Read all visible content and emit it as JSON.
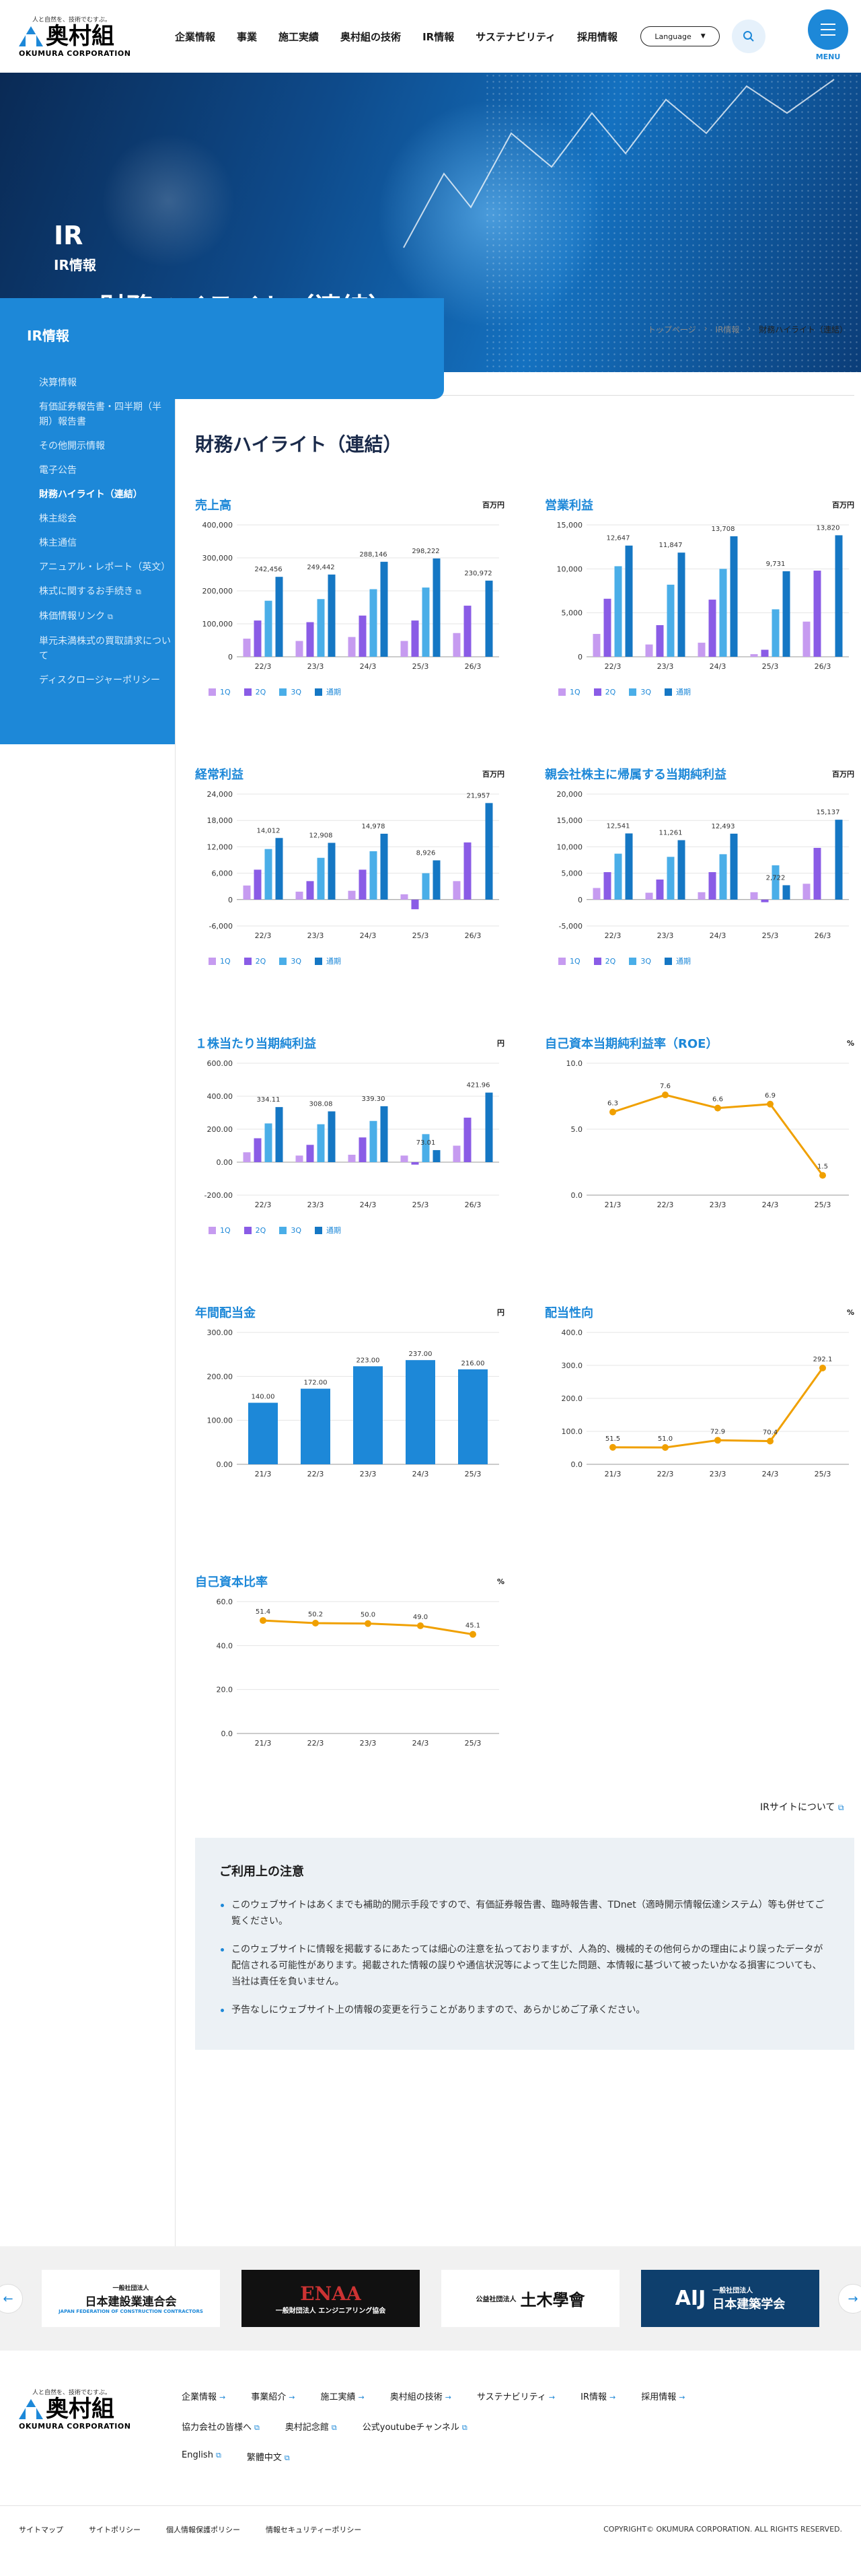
{
  "header": {
    "logo_tagline": "人と自然を、技術でむすぶ。",
    "logo_name": "奥村組",
    "logo_en": "OKUMURA CORPORATION",
    "nav": [
      "企業情報",
      "事業",
      "施工実績",
      "奥村組の技術",
      "IR情報",
      "サステナビリティ",
      "採用情報"
    ],
    "language_label": "Language",
    "menu_label": "MENU"
  },
  "hero": {
    "title_en": "IR",
    "title_sub": "IR情報",
    "page_title": "財務ハイライト（連結）"
  },
  "sidebar": {
    "title": "IR情報",
    "items": [
      {
        "label": "決算情報"
      },
      {
        "label": "有価証券報告書・四半期（半期）報告書"
      },
      {
        "label": "その他開示情報"
      },
      {
        "label": "電子公告"
      },
      {
        "label": "財務ハイライト（連結）",
        "active": true
      },
      {
        "label": "株主総会"
      },
      {
        "label": "株主通信"
      },
      {
        "label": "アニュアル・レポート（英文）"
      },
      {
        "label": "株式に関するお手続き",
        "external": true
      },
      {
        "label": "株価情報リンク",
        "external": true
      },
      {
        "label": "単元未満株式の買取請求について"
      },
      {
        "label": "ディスクロージャーポリシー"
      }
    ]
  },
  "breadcrumb": [
    "トップページ",
    "IR情報",
    "財務ハイライト（連結）"
  ],
  "main": {
    "heading": "財務ハイライト（連結）"
  },
  "legend": [
    "1Q",
    "2Q",
    "3Q",
    "通期"
  ],
  "colors": {
    "q1": "#c69bf0",
    "q2": "#8a5ce6",
    "q3": "#4aaee8",
    "fy": "#1577c4",
    "line": "#f0a000",
    "accent": "#1d88d8"
  },
  "chart_data": [
    {
      "type": "bar",
      "title": "売上高",
      "unit": "百万円",
      "categories": [
        "22/3",
        "23/3",
        "24/3",
        "25/3",
        "26/3"
      ],
      "ylim": [
        0,
        400000
      ],
      "ticks": [
        "0",
        "100,000",
        "200,000",
        "300,000",
        "400,000"
      ],
      "series": [
        {
          "name": "1Q",
          "values": [
            55000,
            48000,
            60000,
            48000,
            72000
          ]
        },
        {
          "name": "2Q",
          "values": [
            110000,
            105000,
            125000,
            110000,
            155000
          ]
        },
        {
          "name": "3Q",
          "values": [
            170000,
            175000,
            205000,
            210000,
            null
          ]
        },
        {
          "name": "通期",
          "values": [
            242456,
            249442,
            288146,
            298222,
            230972
          ]
        }
      ],
      "labels": [
        "242,456",
        "249,442",
        "288,146",
        "298,222",
        "230,972"
      ]
    },
    {
      "type": "bar",
      "title": "営業利益",
      "unit": "百万円",
      "categories": [
        "22/3",
        "23/3",
        "24/3",
        "25/3",
        "26/3"
      ],
      "ylim": [
        0,
        15000
      ],
      "ticks": [
        "0",
        "5,000",
        "10,000",
        "15,000"
      ],
      "series": [
        {
          "name": "1Q",
          "values": [
            2600,
            1400,
            1600,
            300,
            4000
          ]
        },
        {
          "name": "2Q",
          "values": [
            6600,
            3600,
            6500,
            800,
            9800
          ]
        },
        {
          "name": "3Q",
          "values": [
            10300,
            8200,
            10000,
            5400,
            null
          ]
        },
        {
          "name": "通期",
          "values": [
            12647,
            11847,
            13708,
            9731,
            13820
          ]
        }
      ],
      "labels": [
        "12,647",
        "11,847",
        "13,708",
        "9,731",
        "13,820"
      ]
    },
    {
      "type": "bar",
      "title": "経常利益",
      "unit": "百万円",
      "categories": [
        "22/3",
        "23/3",
        "24/3",
        "25/3",
        "26/3"
      ],
      "ylim": [
        -6000,
        24000
      ],
      "ticks": [
        "-6,000",
        "0",
        "6,000",
        "12,000",
        "18,000",
        "24,000"
      ],
      "series": [
        {
          "name": "1Q",
          "values": [
            3200,
            1800,
            2000,
            1200,
            4200
          ]
        },
        {
          "name": "2Q",
          "values": [
            6800,
            4200,
            6800,
            -2200,
            13000
          ]
        },
        {
          "name": "3Q",
          "values": [
            11500,
            9500,
            11000,
            6000,
            null
          ]
        },
        {
          "name": "通期",
          "values": [
            14012,
            12908,
            14978,
            8926,
            21957
          ]
        }
      ],
      "labels": [
        "14,012",
        "12,908",
        "14,978",
        "8,926",
        "21,957"
      ]
    },
    {
      "type": "bar",
      "title": "親会社株主に帰属する当期純利益",
      "unit": "百万円",
      "categories": [
        "22/3",
        "23/3",
        "24/3",
        "25/3",
        "26/3"
      ],
      "ylim": [
        -5000,
        20000
      ],
      "ticks": [
        "-5,000",
        "0",
        "5,000",
        "10,000",
        "15,000",
        "20,000"
      ],
      "series": [
        {
          "name": "1Q",
          "values": [
            2200,
            1300,
            1400,
            1400,
            3000
          ]
        },
        {
          "name": "2Q",
          "values": [
            5200,
            3800,
            5200,
            -500,
            9800
          ]
        },
        {
          "name": "3Q",
          "values": [
            8700,
            8100,
            8600,
            6500,
            null
          ]
        },
        {
          "name": "通期",
          "values": [
            12541,
            11261,
            12493,
            2722,
            15137
          ]
        }
      ],
      "labels": [
        "12,541",
        "11,261",
        "12,493",
        "2,722",
        "15,137"
      ]
    },
    {
      "type": "bar",
      "title": "１株当たり当期純利益",
      "unit": "円",
      "categories": [
        "22/3",
        "23/3",
        "24/3",
        "25/3",
        "26/3"
      ],
      "ylim": [
        -200,
        600
      ],
      "ticks": [
        "-200.00",
        "0.00",
        "200.00",
        "400.00",
        "600.00"
      ],
      "series": [
        {
          "name": "1Q",
          "values": [
            60,
            40,
            45,
            40,
            100
          ]
        },
        {
          "name": "2Q",
          "values": [
            145,
            105,
            150,
            -15,
            270
          ]
        },
        {
          "name": "3Q",
          "values": [
            235,
            230,
            250,
            170,
            null
          ]
        },
        {
          "name": "通期",
          "values": [
            334.11,
            308.08,
            339.3,
            73.01,
            421.96
          ]
        }
      ],
      "labels": [
        "334.11",
        "308.08",
        "339.30",
        "73.01",
        "421.96"
      ]
    },
    {
      "type": "line",
      "title": "自己資本当期純利益率（ROE）",
      "unit": "%",
      "categories": [
        "21/3",
        "22/3",
        "23/3",
        "24/3",
        "25/3"
      ],
      "ylim": [
        0,
        10
      ],
      "ticks": [
        "0.0",
        "5.0",
        "10.0"
      ],
      "values": [
        6.3,
        7.6,
        6.6,
        6.9,
        1.5
      ],
      "labels": [
        "6.3",
        "7.6",
        "6.6",
        "6.9",
        "1.5"
      ]
    },
    {
      "type": "bar",
      "title": "年間配当金",
      "unit": "円",
      "categories": [
        "21/3",
        "22/3",
        "23/3",
        "24/3",
        "25/3"
      ],
      "ylim": [
        0,
        300
      ],
      "ticks": [
        "0.00",
        "100.00",
        "200.00",
        "300.00"
      ],
      "values": [
        140,
        172,
        223,
        237,
        216
      ],
      "labels": [
        "140.00",
        "172.00",
        "223.00",
        "237.00",
        "216.00"
      ]
    },
    {
      "type": "line",
      "title": "配当性向",
      "unit": "%",
      "categories": [
        "21/3",
        "22/3",
        "23/3",
        "24/3",
        "25/3"
      ],
      "ylim": [
        0,
        400
      ],
      "ticks": [
        "0.0",
        "100.0",
        "200.0",
        "300.0",
        "400.0"
      ],
      "values": [
        51.5,
        51.0,
        72.9,
        70.4,
        292.1
      ],
      "labels": [
        "51.5",
        "51.0",
        "72.9",
        "70.4",
        "292.1"
      ]
    },
    {
      "type": "line",
      "title": "自己資本比率",
      "unit": "%",
      "categories": [
        "21/3",
        "22/3",
        "23/3",
        "24/3",
        "25/3"
      ],
      "ylim": [
        0,
        60
      ],
      "ticks": [
        "0.0",
        "20.0",
        "40.0",
        "60.0"
      ],
      "values": [
        51.4,
        50.2,
        50.0,
        49.0,
        45.1
      ],
      "labels": [
        "51.4",
        "50.2",
        "50.0",
        "49.0",
        "45.1"
      ]
    }
  ],
  "ir_site_link": "IRサイトについて",
  "notice": {
    "title": "ご利用上の注意",
    "items": [
      "このウェブサイトはあくまでも補助的開示手段ですので、有価証券報告書、臨時報告書、TDnet（適時開示情報伝達システム）等も併せてご覧ください。",
      "このウェブサイトに情報を掲載するにあたっては細心の注意を払っておりますが、人為的、機械的その他何らかの理由により誤ったデータが配信される可能性があります。掲載された情報の誤りや通信状況等によって生じた問題、本情報に基づいて被ったいかなる損害についても、当社は責任を負いません。",
      "予告なしにウェブサイト上の情報の変更を行うことがありますので、あらかじめご了承ください。"
    ]
  },
  "banners": [
    {
      "label": "日本建設業連合会",
      "sub": "一般社団法人",
      "en": "JAPAN FEDERATION OF CONSTRUCTION CONTRACTORS"
    },
    {
      "label": "ENAA",
      "sub": "一般財団法人 エンジニアリング協会"
    },
    {
      "label": "土木學會",
      "sub": "公益社団法人"
    },
    {
      "label": "日本建築学会",
      "sub": "一般社団法人",
      "mark": "AIJ"
    }
  ],
  "footer": {
    "row1": [
      "企業情報",
      "事業紹介",
      "施工実績",
      "奥村組の技術",
      "サステナビリティ",
      "IR情報",
      "採用情報"
    ],
    "row2": [
      "協力会社の皆様へ",
      "奥村記念館",
      "公式youtubeチャンネル"
    ],
    "row3": [
      "English",
      "繁體中文"
    ],
    "bottom_links": [
      "サイトマップ",
      "サイトポリシー",
      "個人情報保護ポリシー",
      "情報セキュリティーポリシー"
    ],
    "copyright": "COPYRIGHT© OKUMURA CORPORATION. ALL RIGHTS RESERVED."
  }
}
